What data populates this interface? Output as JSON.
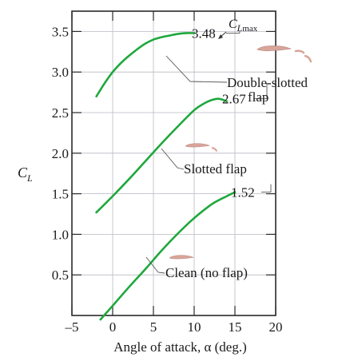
{
  "chart_data": {
    "type": "line",
    "title": "",
    "xlabel": "Angle of attack, α (deg.)",
    "ylabel": "C_L",
    "ylabel_main": "C",
    "ylabel_sub": "L",
    "xlim": [
      -5,
      20
    ],
    "ylim": [
      0,
      3.75
    ],
    "x_ticks": [
      -5,
      0,
      5,
      10,
      15,
      20
    ],
    "x_tick_labels": [
      "–5",
      "0",
      "5",
      "10",
      "15",
      "20"
    ],
    "y_ticks": [
      0.5,
      1.0,
      1.5,
      2.0,
      2.5,
      3.0,
      3.5
    ],
    "y_tick_labels": [
      "0.5",
      "1.0",
      "1.5",
      "2.0",
      "2.5",
      "3.0",
      "3.5"
    ],
    "grid": true,
    "series": [
      {
        "name": "Clean (no flap)",
        "color": "#1ea83c",
        "x": [
          -1.5,
          0,
          2,
          4,
          6,
          8,
          10,
          12,
          13,
          14,
          15
        ],
        "y": [
          -0.05,
          0.12,
          0.35,
          0.57,
          0.8,
          1.01,
          1.2,
          1.36,
          1.42,
          1.47,
          1.52
        ]
      },
      {
        "name": "Slotted flap",
        "color": "#1ea83c",
        "x": [
          -2,
          0,
          2,
          4,
          6,
          8,
          10,
          11,
          12,
          13,
          14
        ],
        "y": [
          1.27,
          1.47,
          1.68,
          1.9,
          2.12,
          2.33,
          2.53,
          2.6,
          2.65,
          2.67,
          2.64
        ]
      },
      {
        "name": "Double-slotted flap",
        "color": "#1ea83c",
        "x": [
          -2,
          -1,
          0,
          1,
          2,
          3,
          4,
          5,
          6,
          7,
          8,
          9,
          10
        ],
        "y": [
          2.7,
          2.86,
          3.0,
          3.11,
          3.2,
          3.28,
          3.35,
          3.4,
          3.43,
          3.45,
          3.47,
          3.48,
          3.48
        ]
      }
    ],
    "annotations": {
      "clmax_label_main": "C",
      "clmax_label_sub1": "L",
      "clmax_label_sub2": "max",
      "double_max": "3.48",
      "slotted_max": "2.67",
      "clean_max": "1.52",
      "double_label_line1": "Double-slotted",
      "double_label_line2": "flap",
      "slotted_label": "Slotted flap",
      "clean_label": "Clean (no flap)"
    },
    "airfoil_color": "#d9a59a"
  }
}
